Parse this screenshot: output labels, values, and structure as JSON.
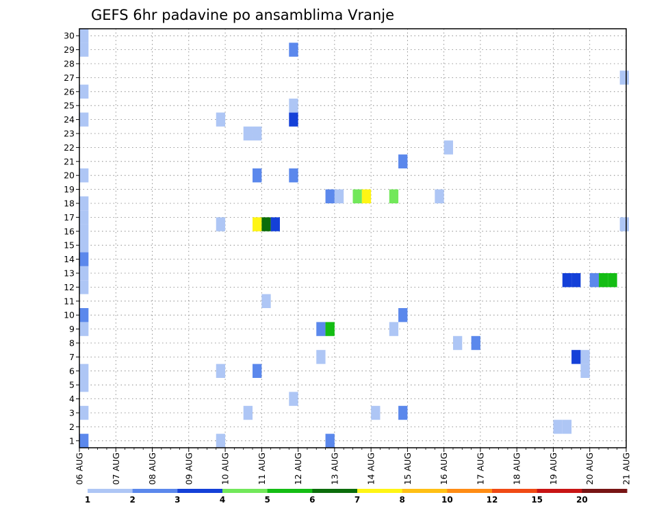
{
  "chart_data": {
    "type": "heatmap",
    "title": "GEFS 6hr padavine po ansamblima Vranje",
    "xlabel": "",
    "ylabel": "",
    "x_ticks": [
      "06 AUG",
      "07 AUG",
      "08 AUG",
      "09 AUG",
      "10 AUG",
      "11 AUG",
      "12 AUG",
      "13 AUG",
      "14 AUG",
      "15 AUG",
      "16 AUG",
      "17 AUG",
      "18 AUG",
      "19 AUG",
      "20 AUG",
      "21 AUG"
    ],
    "y_ticks": [
      "1",
      "2",
      "3",
      "4",
      "5",
      "6",
      "7",
      "8",
      "9",
      "10",
      "11",
      "12",
      "13",
      "14",
      "15",
      "16",
      "17",
      "18",
      "19",
      "20",
      "21",
      "22",
      "23",
      "24",
      "25",
      "26",
      "27",
      "28",
      "29",
      "30"
    ],
    "xlim": [
      0,
      60
    ],
    "ylim": [
      0.5,
      30.5
    ],
    "time_step_hours": 6,
    "grid": true,
    "grid_style": "dotted",
    "legend": {
      "placement": "bottom",
      "labels": [
        "1",
        "2",
        "3",
        "4",
        "5",
        "6",
        "7",
        "8",
        "10",
        "12",
        "15",
        "20"
      ],
      "colors": [
        "#aec6f5",
        "#5b88ec",
        "#1440d8",
        "#72e85a",
        "#14bd14",
        "#0b6d0b",
        "#fff514",
        "#ffc014",
        "#ff8c14",
        "#f04a14",
        "#c81414",
        "#781414"
      ]
    },
    "cells": [
      {
        "x": 0.5,
        "y": 1,
        "v": 2
      },
      {
        "x": 0.5,
        "y": 3,
        "v": 1
      },
      {
        "x": 0.5,
        "y": 5,
        "v": 1
      },
      {
        "x": 0.5,
        "y": 6,
        "v": 1
      },
      {
        "x": 0.5,
        "y": 9,
        "v": 1
      },
      {
        "x": 0.5,
        "y": 10,
        "v": 2
      },
      {
        "x": 0.5,
        "y": 12,
        "v": 1
      },
      {
        "x": 0.5,
        "y": 13,
        "v": 1
      },
      {
        "x": 0.5,
        "y": 14,
        "v": 2
      },
      {
        "x": 0.5,
        "y": 15,
        "v": 1
      },
      {
        "x": 0.5,
        "y": 16,
        "v": 1
      },
      {
        "x": 0.5,
        "y": 17,
        "v": 1
      },
      {
        "x": 0.5,
        "y": 18,
        "v": 1
      },
      {
        "x": 0.5,
        "y": 20,
        "v": 1
      },
      {
        "x": 0.5,
        "y": 24,
        "v": 1
      },
      {
        "x": 0.5,
        "y": 26,
        "v": 1
      },
      {
        "x": 0.5,
        "y": 29,
        "v": 1
      },
      {
        "x": 0.5,
        "y": 30,
        "v": 1
      },
      {
        "x": 15.5,
        "y": 1,
        "v": 1
      },
      {
        "x": 15.5,
        "y": 6,
        "v": 1
      },
      {
        "x": 15.5,
        "y": 16.5,
        "v": 1
      },
      {
        "x": 15.5,
        "y": 24,
        "v": 1
      },
      {
        "x": 18.5,
        "y": 3,
        "v": 1
      },
      {
        "x": 18.5,
        "y": 23,
        "v": 1
      },
      {
        "x": 19.5,
        "y": 23,
        "v": 1
      },
      {
        "x": 19.5,
        "y": 6,
        "v": 2
      },
      {
        "x": 19.5,
        "y": 20,
        "v": 2
      },
      {
        "x": 19.5,
        "y": 16.5,
        "v": 7
      },
      {
        "x": 20.5,
        "y": 11,
        "v": 1
      },
      {
        "x": 20.5,
        "y": 16.5,
        "v": 6
      },
      {
        "x": 21.5,
        "y": 16.5,
        "v": 3
      },
      {
        "x": 23.5,
        "y": 4,
        "v": 1
      },
      {
        "x": 23.5,
        "y": 20,
        "v": 2
      },
      {
        "x": 23.5,
        "y": 24,
        "v": 3
      },
      {
        "x": 23.5,
        "y": 25,
        "v": 1
      },
      {
        "x": 23.5,
        "y": 29,
        "v": 2
      },
      {
        "x": 26.5,
        "y": 7,
        "v": 1
      },
      {
        "x": 26.5,
        "y": 9,
        "v": 2
      },
      {
        "x": 27.5,
        "y": 9,
        "v": 5
      },
      {
        "x": 27.5,
        "y": 1,
        "v": 2
      },
      {
        "x": 27.5,
        "y": 18.5,
        "v": 2
      },
      {
        "x": 28.5,
        "y": 18.5,
        "v": 1
      },
      {
        "x": 30.5,
        "y": 18.5,
        "v": 4
      },
      {
        "x": 31.5,
        "y": 18.5,
        "v": 7
      },
      {
        "x": 32.5,
        "y": 3,
        "v": 1
      },
      {
        "x": 34.5,
        "y": 9,
        "v": 1
      },
      {
        "x": 34.5,
        "y": 18.5,
        "v": 4
      },
      {
        "x": 35.5,
        "y": 3,
        "v": 2
      },
      {
        "x": 35.5,
        "y": 10,
        "v": 2
      },
      {
        "x": 35.5,
        "y": 21,
        "v": 2
      },
      {
        "x": 39.5,
        "y": 18.5,
        "v": 1
      },
      {
        "x": 40.5,
        "y": 22,
        "v": 1
      },
      {
        "x": 41.5,
        "y": 8,
        "v": 1
      },
      {
        "x": 43.5,
        "y": 8,
        "v": 2
      },
      {
        "x": 52.5,
        "y": 2,
        "v": 1
      },
      {
        "x": 53.5,
        "y": 2,
        "v": 1
      },
      {
        "x": 53.5,
        "y": 12.5,
        "v": 3
      },
      {
        "x": 54.5,
        "y": 12.5,
        "v": 3
      },
      {
        "x": 54.5,
        "y": 7,
        "v": 3
      },
      {
        "x": 55.5,
        "y": 6,
        "v": 1
      },
      {
        "x": 55.5,
        "y": 7,
        "v": 1
      },
      {
        "x": 56.5,
        "y": 12.5,
        "v": 2
      },
      {
        "x": 57.5,
        "y": 12.5,
        "v": 5
      },
      {
        "x": 58.5,
        "y": 12.5,
        "v": 5
      },
      {
        "x": 59.8,
        "y": 16.5,
        "v": 1
      },
      {
        "x": 59.8,
        "y": 27,
        "v": 1
      }
    ]
  }
}
